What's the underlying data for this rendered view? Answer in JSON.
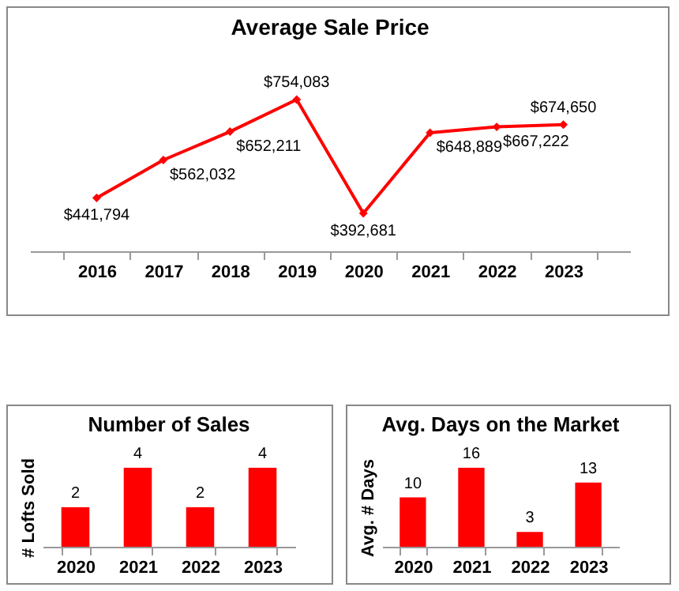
{
  "chart_data": [
    {
      "type": "line",
      "title": "Average Sale Price",
      "categories": [
        "2016",
        "2017",
        "2018",
        "2019",
        "2020",
        "2021",
        "2022",
        "2023"
      ],
      "series": [
        {
          "color": "#ff0000",
          "values": [
            441794,
            562032,
            652211,
            754083,
            392681,
            648889,
            667222,
            674650
          ],
          "value_labels": [
            "$441,794",
            "$562,032",
            "$652,211",
            "$754,083",
            "$392,681",
            "$648,889",
            "$667,222",
            "$674,650"
          ]
        }
      ],
      "marker": "diamond",
      "grid": false,
      "tick_labels": "x"
    },
    {
      "type": "bar",
      "title": "Number of Sales",
      "ylabel": "# Lofts Sold",
      "categories": [
        "2020",
        "2021",
        "2022",
        "2023"
      ],
      "values": [
        2,
        4,
        2,
        4
      ],
      "color": "#ff0000",
      "data_labels": true,
      "tick_labels": "x",
      "grid": false
    },
    {
      "type": "bar",
      "title": "Avg. Days on the Market",
      "ylabel": "Avg. # Days",
      "categories": [
        "2020",
        "2021",
        "2022",
        "2023"
      ],
      "values": [
        10,
        16,
        3,
        13
      ],
      "color": "#ff0000",
      "data_labels": true,
      "tick_labels": "x",
      "grid": false
    }
  ]
}
